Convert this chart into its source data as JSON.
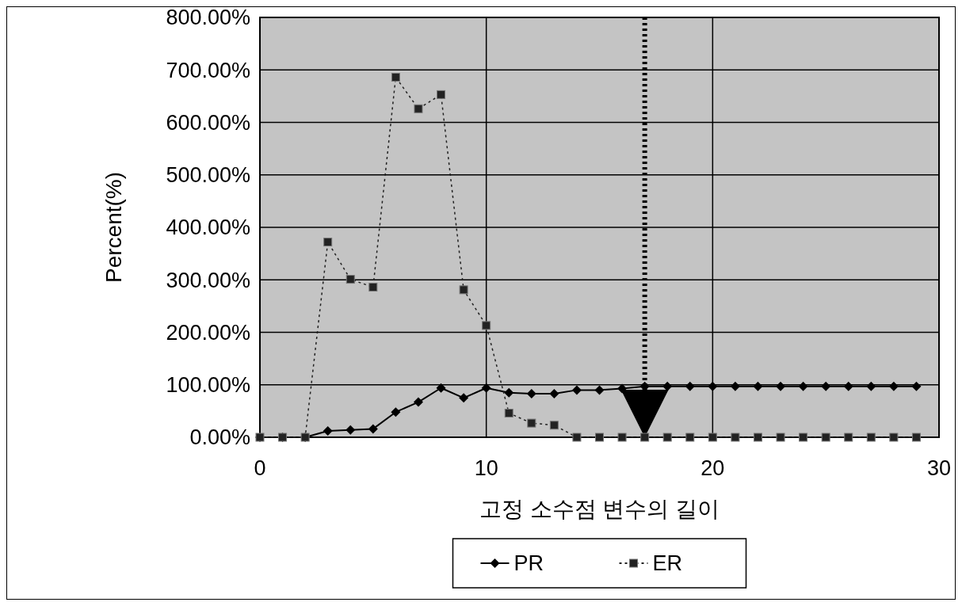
{
  "chart_data": {
    "type": "line",
    "xlabel": "고정 소수점 변수의 길이",
    "ylabel": "Percent(%)",
    "x": [
      0,
      1,
      2,
      3,
      4,
      5,
      6,
      7,
      8,
      9,
      10,
      11,
      12,
      13,
      14,
      15,
      16,
      17,
      18,
      19,
      20,
      21,
      22,
      23,
      24,
      25,
      26,
      27,
      28,
      29
    ],
    "series": [
      {
        "name": "PR",
        "color": "#000000",
        "marker": "diamond",
        "line_style": "solid",
        "values": [
          0,
          0,
          0,
          12,
          14,
          16,
          48,
          67,
          94,
          75,
          94,
          85,
          83,
          83,
          90,
          90,
          93,
          97,
          97,
          97,
          97,
          97,
          97,
          97,
          97,
          97,
          97,
          97,
          97,
          97
        ]
      },
      {
        "name": "ER",
        "color": "#222222",
        "marker": "square",
        "line_style": "dotted",
        "values": [
          0,
          0,
          0,
          372,
          301,
          286,
          686,
          626,
          653,
          281,
          213,
          46,
          27,
          23,
          0,
          0,
          0,
          0,
          0,
          0,
          0,
          0,
          0,
          0,
          0,
          0,
          0,
          0,
          0,
          0
        ]
      }
    ],
    "xlim": [
      0,
      30
    ],
    "xticks": [
      0,
      10,
      20,
      30
    ],
    "ylim": [
      0,
      800
    ],
    "yticks": [
      {
        "value": 0,
        "label": "0.00%"
      },
      {
        "value": 100,
        "label": "100.00%"
      },
      {
        "value": 200,
        "label": "200.00%"
      },
      {
        "value": 300,
        "label": "300.00%"
      },
      {
        "value": 400,
        "label": "400.00%"
      },
      {
        "value": 500,
        "label": "500.00%"
      },
      {
        "value": 600,
        "label": "600.00%"
      },
      {
        "value": 700,
        "label": "700.00%"
      },
      {
        "value": 800,
        "label": "800.00%"
      }
    ],
    "ref_lines": [
      {
        "axis": "x",
        "value": 17,
        "line_style": "dotted",
        "color": "#000000"
      }
    ],
    "grid": true,
    "legend": "bottom"
  }
}
